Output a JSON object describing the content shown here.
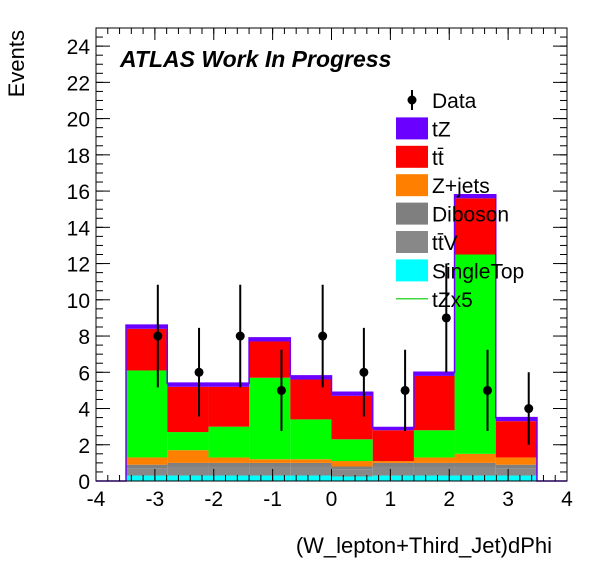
{
  "chart_data": {
    "type": "bar",
    "subtype": "stacked-histogram",
    "title": "ATLAS Work In Progress",
    "xlabel": "(W_lepton+Third_Jet)dPhi",
    "ylabel": "Events",
    "xlim": [
      -4,
      4
    ],
    "ylim": [
      0,
      25
    ],
    "xticks": [
      -4,
      -3,
      -2,
      -1,
      0,
      1,
      2,
      3,
      4
    ],
    "yticks": [
      0,
      2,
      4,
      6,
      8,
      10,
      12,
      14,
      16,
      18,
      20,
      22,
      24
    ],
    "legend_position": "top-right",
    "bin_edges": [
      -3.49,
      -2.79,
      -2.09,
      -1.4,
      -0.7,
      0.0,
      0.7,
      1.4,
      2.09,
      2.79,
      3.49
    ],
    "series": [
      {
        "name": "SingleTop",
        "color": "#00ffff",
        "values": [
          0.3,
          0.3,
          0.3,
          0.3,
          0.3,
          0.25,
          0.3,
          0.3,
          0.3,
          0.3
        ]
      },
      {
        "name": "ttV",
        "color": "#888888",
        "values": [
          0.4,
          0.5,
          0.5,
          0.5,
          0.5,
          0.4,
          0.5,
          0.5,
          0.5,
          0.4
        ]
      },
      {
        "name": "Diboson",
        "color": "#7f7f7f",
        "values": [
          0.2,
          0.2,
          0.2,
          0.2,
          0.2,
          0.15,
          0.2,
          0.2,
          0.2,
          0.2
        ]
      },
      {
        "name": "Z+jets",
        "color": "#ff7f00",
        "values": [
          0.4,
          0.7,
          0.3,
          0.2,
          0.2,
          0.3,
          0.1,
          0.3,
          0.5,
          0.4
        ]
      },
      {
        "name": "tZ",
        "color": "#00ff00",
        "values": [
          4.8,
          1.0,
          1.7,
          4.5,
          2.2,
          1.2,
          0.0,
          1.5,
          11.0,
          0.0
        ]
      },
      {
        "name": "tt̄",
        "color": "#ff0000",
        "values": [
          2.3,
          2.5,
          2.2,
          2.0,
          2.2,
          2.4,
          1.7,
          3.0,
          3.1,
          2.0
        ]
      },
      {
        "name": "tZ",
        "color": "#6a00ff",
        "values": [
          0.2,
          0.2,
          0.2,
          0.2,
          0.2,
          0.2,
          0.15,
          0.2,
          0.2,
          0.2
        ]
      }
    ],
    "data": {
      "name": "Data",
      "x": [
        -2.95,
        -2.25,
        -1.55,
        -0.85,
        -0.15,
        0.55,
        1.25,
        1.95,
        2.65,
        3.35
      ],
      "y": [
        8,
        6,
        8,
        5,
        8,
        6,
        5,
        9,
        5,
        4
      ],
      "err": [
        2.83,
        2.45,
        2.83,
        2.24,
        2.83,
        2.45,
        2.24,
        3.0,
        2.24,
        2.0
      ]
    },
    "legend": [
      {
        "label": "Data",
        "kind": "marker",
        "color": "#000000"
      },
      {
        "label": "tZ",
        "kind": "box",
        "color": "#6a00ff"
      },
      {
        "label": "tt̄",
        "kind": "box",
        "color": "#ff0000"
      },
      {
        "label": "Z+jets",
        "kind": "box",
        "color": "#ff7f00"
      },
      {
        "label": "Diboson",
        "kind": "box",
        "color": "#7f7f7f"
      },
      {
        "label": "tt̄V",
        "kind": "box",
        "color": "#888888"
      },
      {
        "label": "SingleTop",
        "kind": "box",
        "color": "#00ffff"
      },
      {
        "label": "tZx5",
        "kind": "line",
        "color": "#00cc00"
      }
    ]
  }
}
